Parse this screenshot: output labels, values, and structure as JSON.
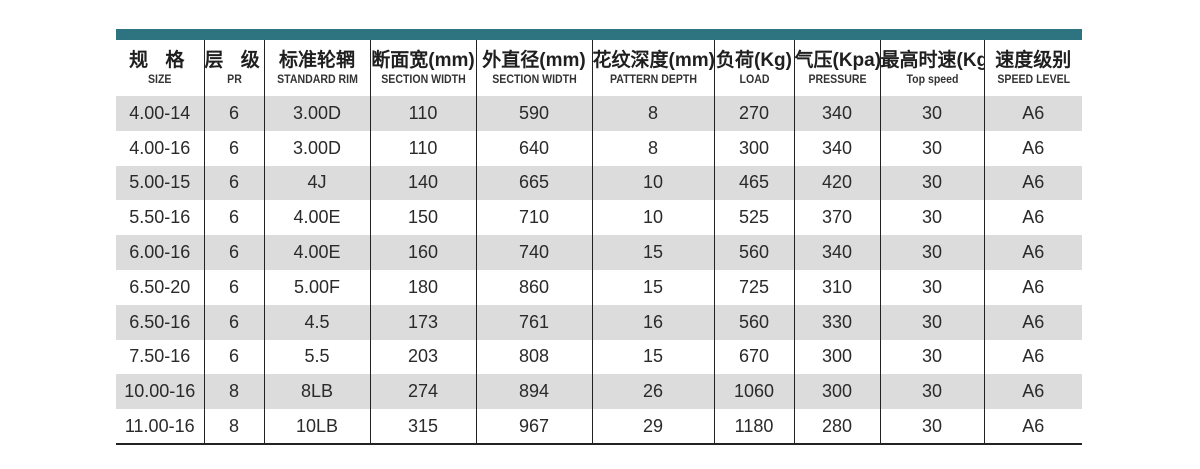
{
  "colors": {
    "header_bar": "#2e7380",
    "row_shade": "#dcdcdc"
  },
  "headers": [
    {
      "cn": "规 格",
      "en": "SIZE"
    },
    {
      "cn": "层 级",
      "en": "PR"
    },
    {
      "cn": "标准轮辋",
      "en": "STANDARD RIM"
    },
    {
      "cn": "断面宽(mm)",
      "en": "SECTION WIDTH"
    },
    {
      "cn": "外直径(mm)",
      "en": "SECTION WIDTH"
    },
    {
      "cn": "花纹深度(mm)",
      "en": "PATTERN DEPTH"
    },
    {
      "cn": "负荷(Kg)",
      "en": "LOAD"
    },
    {
      "cn": "气压(Kpa)",
      "en": "PRESSURE"
    },
    {
      "cn": "最高时速(Kg)",
      "en": "Top speed"
    },
    {
      "cn": "速度级别",
      "en": "SPEED LEVEL"
    }
  ],
  "rows": [
    [
      "4.00-14",
      "6",
      "3.00D",
      "110",
      "590",
      "8",
      "270",
      "340",
      "30",
      "A6"
    ],
    [
      "4.00-16",
      "6",
      "3.00D",
      "110",
      "640",
      "8",
      "300",
      "340",
      "30",
      "A6"
    ],
    [
      "5.00-15",
      "6",
      "4J",
      "140",
      "665",
      "10",
      "465",
      "420",
      "30",
      "A6"
    ],
    [
      "5.50-16",
      "6",
      "4.00E",
      "150",
      "710",
      "10",
      "525",
      "370",
      "30",
      "A6"
    ],
    [
      "6.00-16",
      "6",
      "4.00E",
      "160",
      "740",
      "15",
      "560",
      "340",
      "30",
      "A6"
    ],
    [
      "6.50-20",
      "6",
      "5.00F",
      "180",
      "860",
      "15",
      "725",
      "310",
      "30",
      "A6"
    ],
    [
      "6.50-16",
      "6",
      "4.5",
      "173",
      "761",
      "16",
      "560",
      "330",
      "30",
      "A6"
    ],
    [
      "7.50-16",
      "6",
      "5.5",
      "203",
      "808",
      "15",
      "670",
      "300",
      "30",
      "A6"
    ],
    [
      "10.00-16",
      "8",
      "8LB",
      "274",
      "894",
      "26",
      "1060",
      "300",
      "30",
      "A6"
    ],
    [
      "11.00-16",
      "8",
      "10LB",
      "315",
      "967",
      "29",
      "1180",
      "280",
      "30",
      "A6"
    ]
  ]
}
